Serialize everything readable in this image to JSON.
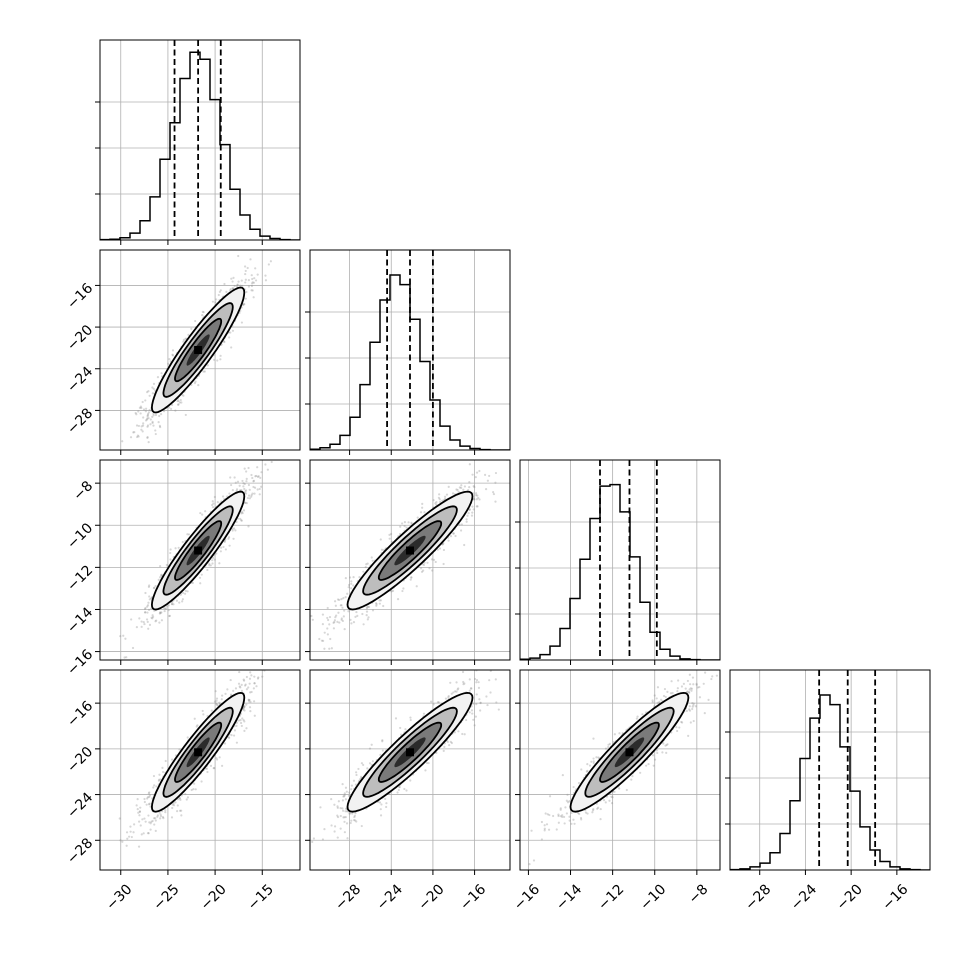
{
  "chart_data": {
    "type": "corner",
    "grid": true,
    "parameters": [
      {
        "mean": -21.8,
        "sigma": 2.45,
        "range": [
          -32.2,
          -11.0
        ],
        "ticks": [
          -30,
          -25,
          -20,
          -15
        ],
        "tick_labels": [
          "−30",
          "−25",
          "−20",
          "−15"
        ],
        "quantiles": [
          -24.3,
          -21.8,
          -19.4
        ]
      },
      {
        "mean": -22.2,
        "sigma": 3.0,
        "range": [
          -31.8,
          -12.6
        ],
        "ticks": [
          -28,
          -24,
          -20,
          -16
        ],
        "tick_labels": [
          "−28",
          "−24",
          "−20",
          "−16"
        ],
        "quantiles": [
          -24.4,
          -22.2,
          -20.0
        ]
      },
      {
        "mean": -11.2,
        "sigma": 1.4,
        "range": [
          -16.4,
          -6.9
        ],
        "ticks": [
          -16,
          -14,
          -12,
          -10,
          -8
        ],
        "tick_labels": [
          "−16",
          "−14",
          "−12",
          "−10",
          "−8"
        ],
        "quantiles": [
          -12.6,
          -11.2,
          -9.9
        ]
      },
      {
        "mean": -20.3,
        "sigma": 2.6,
        "range": [
          -30.6,
          -13.1
        ],
        "ticks": [
          -28,
          -24,
          -20,
          -16
        ],
        "tick_labels": [
          "−28",
          "−24",
          "−20",
          "−16"
        ],
        "quantiles": [
          -22.8,
          -20.3,
          -17.9
        ]
      }
    ],
    "correlation": 0.92,
    "histograms": [
      {
        "counts": [
          1,
          2,
          6,
          18,
          50,
          112,
          210,
          305,
          420,
          488,
          470,
          365,
          248,
          132,
          65,
          28,
          10,
          4,
          1,
          0
        ]
      },
      {
        "counts": [
          2,
          6,
          15,
          38,
          85,
          170,
          280,
          390,
          455,
          430,
          340,
          230,
          130,
          62,
          26,
          10,
          4,
          1,
          0,
          0
        ]
      },
      {
        "counts": [
          2,
          5,
          14,
          36,
          82,
          160,
          262,
          368,
          452,
          456,
          385,
          268,
          150,
          72,
          28,
          10,
          3,
          1,
          0,
          0
        ]
      },
      {
        "counts": [
          1,
          3,
          8,
          18,
          45,
          95,
          180,
          290,
          395,
          455,
          430,
          320,
          205,
          112,
          52,
          22,
          8,
          3,
          1,
          0
        ]
      }
    ],
    "hist_ymax": 520,
    "pairs": [
      {
        "row": 1,
        "col": 0
      },
      {
        "row": 2,
        "col": 0
      },
      {
        "row": 2,
        "col": 1
      },
      {
        "row": 3,
        "col": 0
      },
      {
        "row": 3,
        "col": 1
      },
      {
        "row": 3,
        "col": 2
      }
    ],
    "contour_levels_sigma": [
      0.5,
      1.0,
      1.5,
      2.0
    ]
  }
}
